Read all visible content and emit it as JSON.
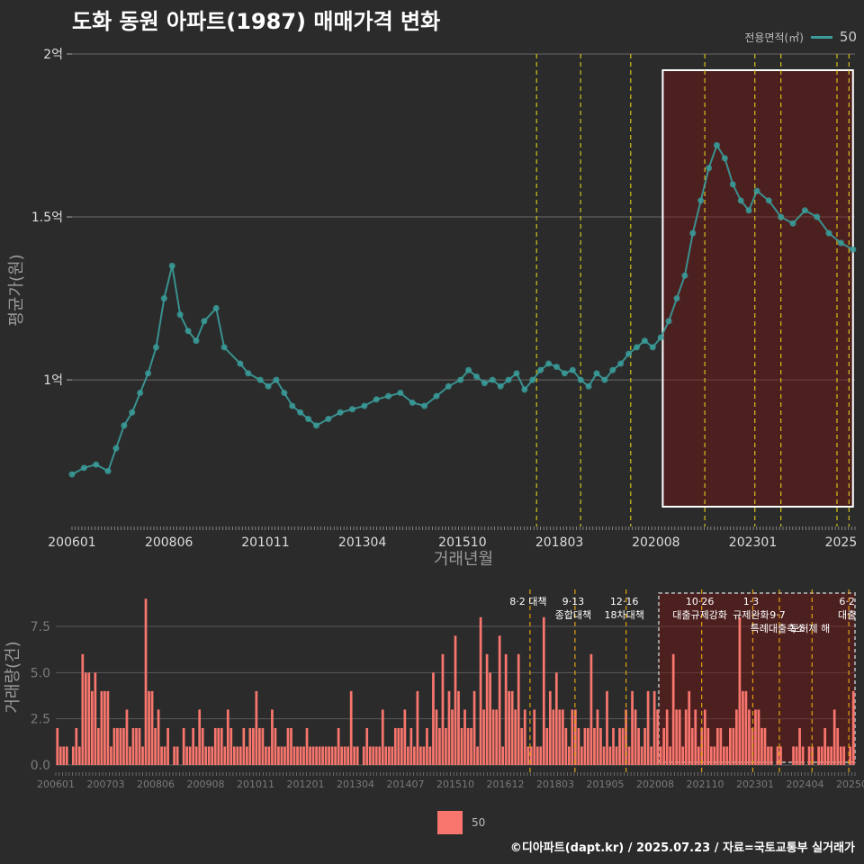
{
  "title": "도화 동원 아파트(1987) 매매가격 변화",
  "legend_top": {
    "title": "전용면적(㎡)",
    "item": "50",
    "color": "#3a9c9a"
  },
  "legend_bottom": {
    "item": "50",
    "color": "#f8766d"
  },
  "credit": "©디아파트(dapt.kr) / 2025.07.23 / 자료=국토교통부 실거래가",
  "chart_data": [
    {
      "type": "line",
      "title": "도화 동원 아파트(1987) 매매가격 변화",
      "xlabel": "거래년월",
      "ylabel": "평균가(원)",
      "ylim": [
        0.55,
        2.0
      ],
      "y_unit": "억",
      "y_ticks": [
        {
          "v": 1.0,
          "label": "1억"
        },
        {
          "v": 1.5,
          "label": "1.5억"
        },
        {
          "v": 2.0,
          "label": "2억"
        }
      ],
      "x_ticks": [
        "200601",
        "200806",
        "201011",
        "201304",
        "201510",
        "201803",
        "202008",
        "202301",
        "2025"
      ],
      "grid": true,
      "legend": "top-right",
      "highlight_period": {
        "from": 2020.75,
        "to": 2025.5
      },
      "policy_lines": [
        2017.6,
        2018.7,
        2019.95,
        2021.8,
        2023.05,
        2023.7,
        2025.1,
        2025.4
      ],
      "series": [
        {
          "name": "50",
          "x": [
            2006.0,
            2006.3,
            2006.6,
            2006.9,
            2007.1,
            2007.3,
            2007.5,
            2007.7,
            2007.9,
            2008.1,
            2008.3,
            2008.5,
            2008.7,
            2008.9,
            2009.1,
            2009.3,
            2009.6,
            2009.8,
            2010.2,
            2010.4,
            2010.7,
            2010.9,
            2011.1,
            2011.3,
            2011.5,
            2011.7,
            2011.9,
            2012.1,
            2012.4,
            2012.7,
            2013.0,
            2013.3,
            2013.6,
            2013.9,
            2014.2,
            2014.5,
            2014.8,
            2015.1,
            2015.4,
            2015.7,
            2015.9,
            2016.1,
            2016.3,
            2016.5,
            2016.7,
            2016.9,
            2017.1,
            2017.3,
            2017.5,
            2017.7,
            2017.9,
            2018.1,
            2018.3,
            2018.5,
            2018.7,
            2018.9,
            2019.1,
            2019.3,
            2019.5,
            2019.7,
            2019.9,
            2020.1,
            2020.3,
            2020.5,
            2020.7,
            2020.9,
            2021.1,
            2021.3,
            2021.5,
            2021.7,
            2021.9,
            2022.1,
            2022.3,
            2022.5,
            2022.7,
            2022.9,
            2023.1,
            2023.4,
            2023.7,
            2024.0,
            2024.3,
            2024.6,
            2024.9,
            2025.2,
            2025.5
          ],
          "values": [
            0.71,
            0.73,
            0.74,
            0.72,
            0.79,
            0.86,
            0.9,
            0.96,
            1.02,
            1.1,
            1.25,
            1.35,
            1.2,
            1.15,
            1.12,
            1.18,
            1.22,
            1.1,
            1.05,
            1.02,
            1.0,
            0.98,
            1.0,
            0.96,
            0.92,
            0.9,
            0.88,
            0.86,
            0.88,
            0.9,
            0.91,
            0.92,
            0.94,
            0.95,
            0.96,
            0.93,
            0.92,
            0.95,
            0.98,
            1.0,
            1.03,
            1.01,
            0.99,
            1.0,
            0.98,
            1.0,
            1.02,
            0.97,
            1.0,
            1.03,
            1.05,
            1.04,
            1.02,
            1.03,
            1.0,
            0.98,
            1.02,
            1.0,
            1.03,
            1.05,
            1.08,
            1.1,
            1.12,
            1.1,
            1.13,
            1.18,
            1.25,
            1.32,
            1.45,
            1.55,
            1.65,
            1.72,
            1.68,
            1.6,
            1.55,
            1.52,
            1.58,
            1.55,
            1.5,
            1.48,
            1.52,
            1.5,
            1.45,
            1.42,
            1.4
          ]
        }
      ]
    },
    {
      "type": "bar",
      "xlabel": "",
      "ylabel": "거래량(건)",
      "ylim": [
        0,
        9.5
      ],
      "y_ticks": [
        "0.0",
        "2.5",
        "5.0",
        "7.5"
      ],
      "x_ticks": [
        "200601",
        "200703",
        "200806",
        "200908",
        "201011",
        "201201",
        "201304",
        "201407",
        "201510",
        "201612",
        "201803",
        "201905",
        "202008",
        "202110",
        "202301",
        "202404",
        "202507"
      ],
      "legend": "bottom",
      "annotations": [
        {
          "x": 2017.6,
          "lines": [
            "8·2 대책"
          ]
        },
        {
          "x": 2018.7,
          "lines": [
            "9·13",
            "종합대책"
          ]
        },
        {
          "x": 2019.95,
          "lines": [
            "12·16",
            "18차대책"
          ]
        },
        {
          "x": 2021.8,
          "lines": [
            "10·26",
            "대출규제강화"
          ]
        },
        {
          "x": 2023.05,
          "lines": [
            "1·3",
            "규제완화"
          ]
        },
        {
          "x": 2023.7,
          "lines": [
            "",
            "9·7",
            "특례대출축소"
          ]
        },
        {
          "x": 2024.5,
          "lines": [
            "",
            "",
            "토허제 해"
          ]
        },
        {
          "x": 2025.4,
          "lines": [
            "6·2",
            "대출"
          ]
        }
      ],
      "series": [
        {
          "name": "50",
          "values": [
            2,
            1,
            1,
            1,
            0,
            1,
            2,
            1,
            6,
            5,
            5,
            4,
            5,
            2,
            4,
            4,
            4,
            1,
            2,
            2,
            2,
            2,
            3,
            1,
            2,
            2,
            2,
            1,
            9,
            4,
            4,
            2,
            3,
            1,
            1,
            2,
            0,
            1,
            1,
            0,
            2,
            1,
            1,
            2,
            1,
            3,
            2,
            1,
            1,
            1,
            2,
            2,
            2,
            1,
            3,
            2,
            1,
            1,
            1,
            2,
            1,
            2,
            2,
            4,
            2,
            2,
            1,
            1,
            3,
            2,
            1,
            1,
            1,
            2,
            2,
            1,
            1,
            1,
            1,
            2,
            1,
            1,
            1,
            1,
            1,
            1,
            1,
            1,
            1,
            2,
            1,
            1,
            1,
            4,
            1,
            1,
            0,
            1,
            2,
            1,
            1,
            1,
            1,
            3,
            1,
            1,
            1,
            2,
            2,
            2,
            3,
            1,
            2,
            1,
            4,
            1,
            1,
            2,
            1,
            5,
            3,
            2,
            6,
            2,
            4,
            3,
            7,
            4,
            2,
            3,
            2,
            2,
            4,
            1,
            8,
            3,
            6,
            5,
            3,
            3,
            7,
            1,
            6,
            4,
            4,
            3,
            6,
            2,
            3,
            1,
            1,
            3,
            1,
            1,
            8,
            2,
            4,
            3,
            5,
            3,
            3,
            2,
            1,
            3,
            3,
            2,
            1,
            2,
            2,
            6,
            2,
            3,
            2,
            1,
            4,
            1,
            2,
            1,
            2,
            2,
            3,
            1,
            4,
            3,
            2,
            1,
            2,
            4,
            1,
            4,
            3,
            1,
            2,
            3,
            1,
            6,
            3,
            3,
            1,
            3,
            4,
            2,
            3,
            1,
            2,
            3,
            2,
            1,
            1,
            2,
            2,
            1,
            1,
            2,
            2,
            3,
            8,
            4,
            4,
            3,
            2,
            3,
            3,
            2,
            2,
            1,
            1,
            0,
            1,
            1,
            0,
            0,
            0,
            1,
            1,
            2,
            1,
            0,
            1,
            1,
            0,
            1,
            1,
            2,
            1,
            1,
            3,
            2,
            1,
            1,
            0,
            1,
            4
          ]
        }
      ]
    }
  ]
}
